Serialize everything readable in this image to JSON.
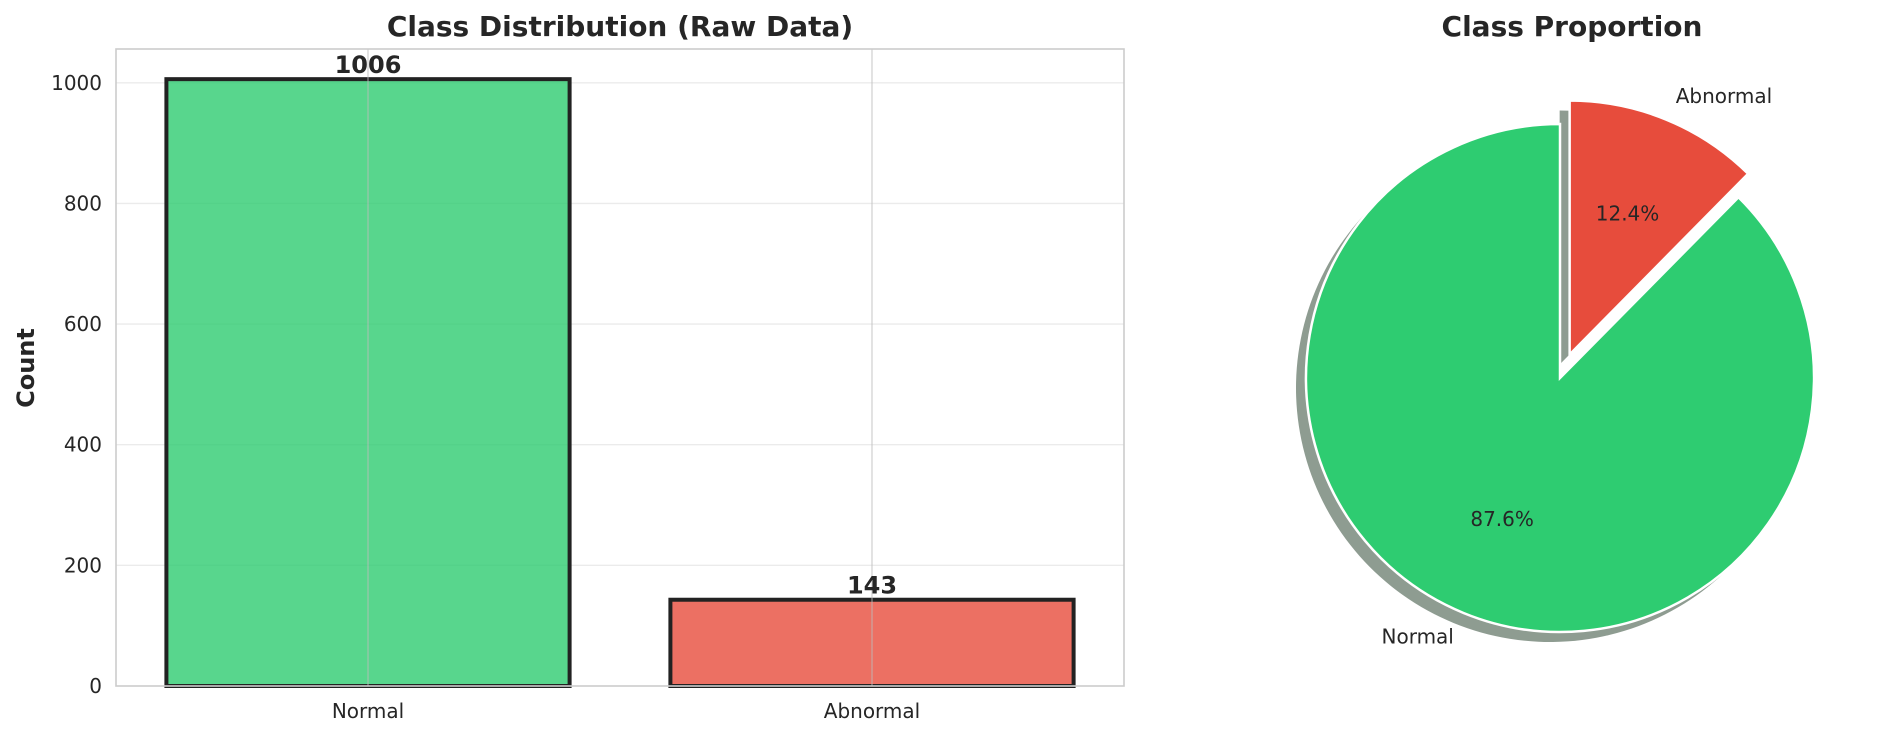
{
  "chart_data": [
    {
      "type": "bar",
      "title": "Class Distribution (Raw Data)",
      "xlabel": "",
      "ylabel": "Count",
      "categories": [
        "Normal",
        "Abnormal"
      ],
      "values": [
        1006,
        143
      ],
      "data_labels": [
        "1006",
        "143"
      ],
      "colors": [
        "#2ecc71",
        "#e74c3c"
      ],
      "ylim": [
        0,
        1056
      ],
      "yticks": [
        "0",
        "200",
        "400",
        "600",
        "800",
        "1000"
      ],
      "grid": true
    },
    {
      "type": "pie",
      "title": "Class Proportion",
      "labels": [
        "Normal",
        "Abnormal"
      ],
      "values": [
        87.6,
        12.4
      ],
      "pct_labels": [
        "87.6%",
        "12.4%"
      ],
      "colors": [
        "#2ecc71",
        "#e74c3c"
      ],
      "explode": "Abnormal",
      "shadow": true
    }
  ]
}
